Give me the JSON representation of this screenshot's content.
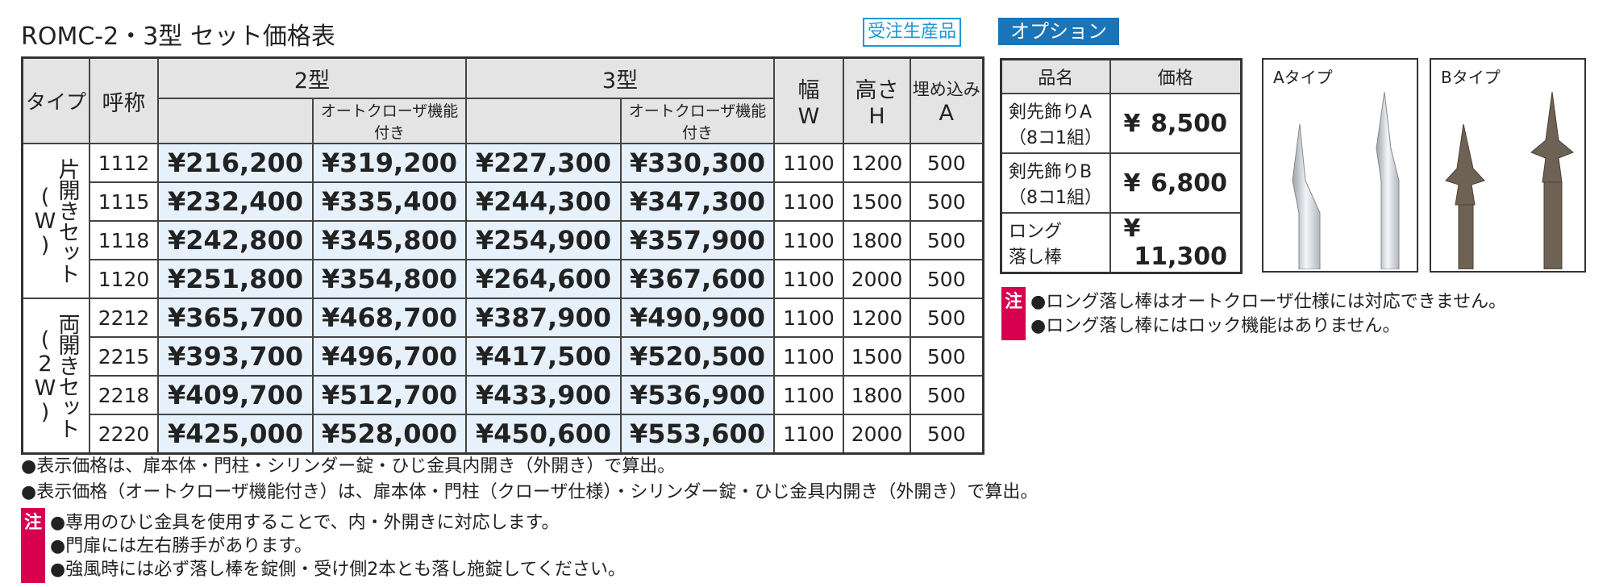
{
  "header": {
    "title": "ROMC-2・3型 セット価格表",
    "badge": "受注生産品"
  },
  "table": {
    "head": {
      "type": "タイプ",
      "name": "呼称",
      "model2": "2型",
      "model3": "3型",
      "auto2": "オートクローザ機能付き",
      "auto3": "オートクローザ機能付き",
      "width": [
        "幅",
        "W"
      ],
      "height": [
        "高さ",
        "H"
      ],
      "embed": [
        "埋め込み",
        "A"
      ]
    },
    "groups": [
      {
        "label": "片開きセット(W)",
        "rows": [
          [
            "1112",
            "¥216,200",
            "¥319,200",
            "¥227,300",
            "¥330,300",
            "1100",
            "1200",
            "500"
          ],
          [
            "1115",
            "¥232,400",
            "¥335,400",
            "¥244,300",
            "¥347,300",
            "1100",
            "1500",
            "500"
          ],
          [
            "1118",
            "¥242,800",
            "¥345,800",
            "¥254,900",
            "¥357,900",
            "1100",
            "1800",
            "500"
          ],
          [
            "1120",
            "¥251,800",
            "¥354,800",
            "¥264,600",
            "¥367,600",
            "1100",
            "2000",
            "500"
          ]
        ]
      },
      {
        "label": "両開きセット(2W)",
        "rows": [
          [
            "2212",
            "¥365,700",
            "¥468,700",
            "¥387,900",
            "¥490,900",
            "1100",
            "1200",
            "500"
          ],
          [
            "2215",
            "¥393,700",
            "¥496,700",
            "¥417,500",
            "¥520,500",
            "1100",
            "1500",
            "500"
          ],
          [
            "2218",
            "¥409,700",
            "¥512,700",
            "¥433,900",
            "¥536,900",
            "1100",
            "1800",
            "500"
          ],
          [
            "2220",
            "¥425,000",
            "¥528,000",
            "¥450,600",
            "¥553,600",
            "1100",
            "2000",
            "500"
          ]
        ]
      }
    ]
  },
  "notes": [
    "●表示価格は、扉本体・門柱・シリンダー錠・ひじ金具内開き（外開き）で算出。",
    "●表示価格（オートクローザ機能付き）は、扉本体・門柱（クローザ仕様）・シリンダー錠・ひじ金具内開き（外開き）で算出。"
  ],
  "caution": {
    "mark": "注",
    "lines": [
      "●専用のひじ金具を使用することで、内・外開きに対応します。",
      "●門扉には左右勝手があります。",
      "●強風時には必ず落し棒を錠側・受け側2本とも落し施錠してください。"
    ]
  },
  "options": {
    "title": "オプション",
    "head": [
      "品名",
      "価格"
    ],
    "rows": [
      {
        "name": [
          "剣先飾りA",
          "（8コ1組）"
        ],
        "yen": "¥",
        "price": "8,500"
      },
      {
        "name": [
          "剣先飾りB",
          "（8コ1組）"
        ],
        "yen": "¥",
        "price": "6,800"
      },
      {
        "name": [
          "ロング",
          "落し棒"
        ],
        "yen": "¥",
        "price": "11,300"
      }
    ],
    "caution": {
      "mark": "注",
      "lines": [
        "●ロング落し棒はオートクローザ仕様には対応できません。",
        "●ロング落し棒にはロック機能はありません。"
      ]
    }
  },
  "images": [
    "Aタイプ",
    "Bタイプ"
  ]
}
